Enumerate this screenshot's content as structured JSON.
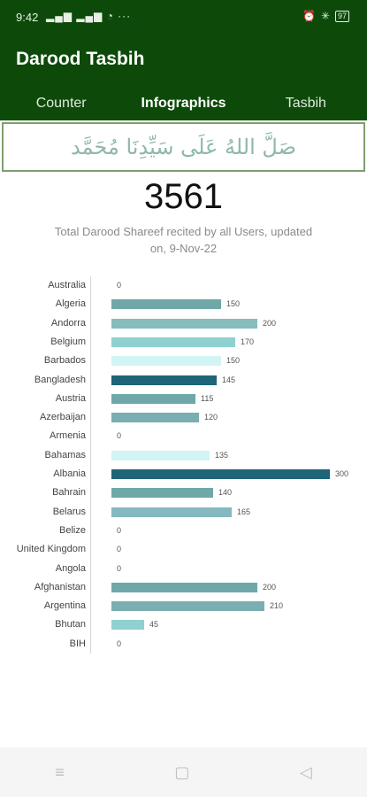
{
  "status": {
    "time": "9:42",
    "signal": "▂▄▆ ▂▄▆ ◔ ···",
    "alarm": "⏰",
    "bluetooth": "✳",
    "battery": "97"
  },
  "app": {
    "title": "Darood Tasbih"
  },
  "tabs": [
    {
      "label": "Counter"
    },
    {
      "label": "Infographics"
    },
    {
      "label": "Tasbih"
    }
  ],
  "banner": {
    "arabic": "صَلَّ اللهُ عَلَى سَيِّدِنَا مُحَمَّد"
  },
  "summary": {
    "total": "3561",
    "caption": "Total Darood Shareef recited by all Users, updated on, 9-Nov-22"
  },
  "chart_data": {
    "type": "bar",
    "orientation": "horizontal",
    "categories": [
      "Australia",
      "Algeria",
      "Andorra",
      "Belgium",
      "Barbados",
      "Bangladesh",
      "Austria",
      "Azerbaijan",
      "Armenia",
      "Bahamas",
      "Albania",
      "Bahrain",
      "Belarus",
      "Belize",
      "United Kingdom",
      "Angola",
      "Afghanistan",
      "Argentina",
      "Bhutan",
      "BIH"
    ],
    "values": [
      0,
      150,
      200,
      170,
      150,
      145,
      115,
      120,
      0,
      135,
      300,
      140,
      165,
      0,
      0,
      0,
      200,
      210,
      45,
      0
    ],
    "colors": [
      "#7fbcbc",
      "#6fa8a8",
      "#86bcbc",
      "#8fd0d0",
      "#d2f4f4",
      "#1f6478",
      "#6fa8a8",
      "#7aaeb0",
      "#7fbcbc",
      "#d2f4f4",
      "#1f6478",
      "#6fa8a8",
      "#86b8c0",
      "#7fbcbc",
      "#7fbcbc",
      "#7fbcbc",
      "#6fa8a8",
      "#7aaeb0",
      "#8fd0d0",
      "#7fbcbc"
    ],
    "xlim": [
      0,
      300
    ]
  },
  "nav": {
    "menu": "≡",
    "home": "▢",
    "back": "◁"
  }
}
